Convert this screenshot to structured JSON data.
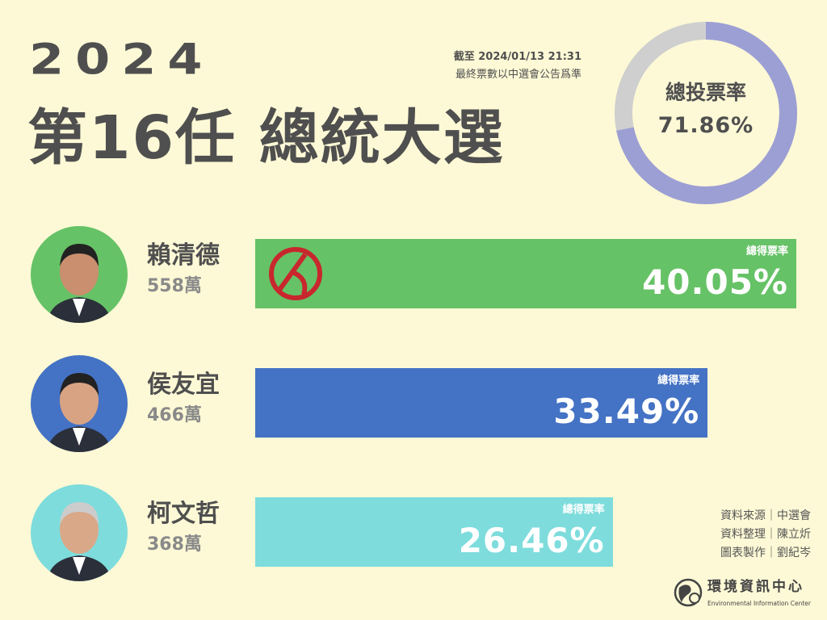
{
  "header": {
    "year": "2024",
    "title": "第16任 總統大選",
    "as_of": "截至 2024/01/13 21:31",
    "note": "最終票數以中選會公告爲準"
  },
  "turnout": {
    "label": "總投票率",
    "value": "71.86%",
    "fraction": 0.7186,
    "color": "#9c9fd4",
    "rest_color": "#cfcfcf"
  },
  "chart_data": {
    "type": "bar",
    "orientation": "horizontal",
    "categories": [
      "賴清德",
      "侯友宜",
      "柯文哲"
    ],
    "values": [
      40.05,
      33.49,
      26.46
    ],
    "unit": "%",
    "value_label": "總得票率",
    "votes": [
      "558萬",
      "466萬",
      "368萬"
    ],
    "colors": [
      "#66c266",
      "#4472c4",
      "#7edcdc"
    ],
    "winner_mark": "賴清德"
  },
  "candidates": [
    {
      "name": "賴清德",
      "votes": "558萬",
      "rate_label": "總得票率",
      "rate": "40.05%",
      "color": "#66c266"
    },
    {
      "name": "侯友宜",
      "votes": "466萬",
      "rate_label": "總得票率",
      "rate": "33.49%",
      "color": "#4472c4"
    },
    {
      "name": "柯文哲",
      "votes": "368萬",
      "rate_label": "總得票率",
      "rate": "26.46%",
      "color": "#7edcdc"
    }
  ],
  "credits": [
    "資料來源｜中選會",
    "資料整理｜陳立炘",
    "圖表製作｜劉紀岑"
  ],
  "logo": {
    "name": "環境資訊中心",
    "sub": "Environmental Information Center",
    "icon": "globe-icon"
  }
}
